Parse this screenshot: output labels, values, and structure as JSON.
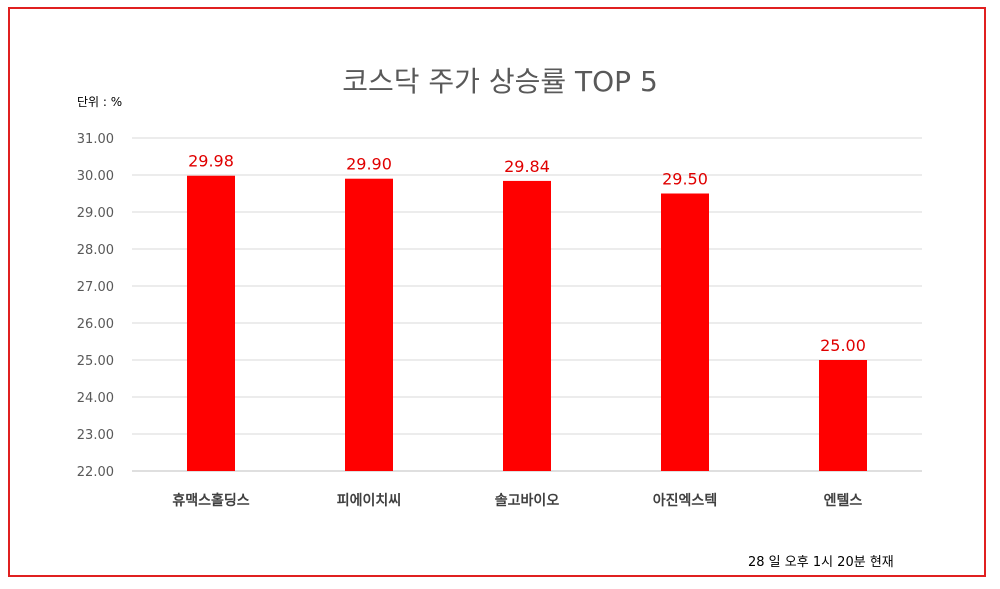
{
  "title": "코스닥 주가 상승률 TOP 5",
  "unit_label": "단위 : %",
  "footnote": "28 일  오후 1시 20분 현재",
  "colors": {
    "bar": "#ff0000",
    "data_label": "#e00000",
    "frame": "#e02020",
    "grid": "#d9d9d9"
  },
  "chart_data": {
    "type": "bar",
    "title": "코스닥 주가 상승률 TOP 5",
    "categories": [
      "휴맥스홀딩스",
      "피에이치씨",
      "솔고바이오",
      "아진엑스텍",
      "엔텔스"
    ],
    "values": [
      29.98,
      29.9,
      29.84,
      29.5,
      25.0
    ],
    "data_labels": [
      "29.98",
      "29.90",
      "29.84",
      "29.50",
      "25.00"
    ],
    "yticks": [
      "22.00",
      "23.00",
      "24.00",
      "25.00",
      "26.00",
      "27.00",
      "28.00",
      "29.00",
      "30.00",
      "31.00"
    ],
    "ylim": [
      22,
      31
    ],
    "grid": true,
    "legend": "none"
  }
}
